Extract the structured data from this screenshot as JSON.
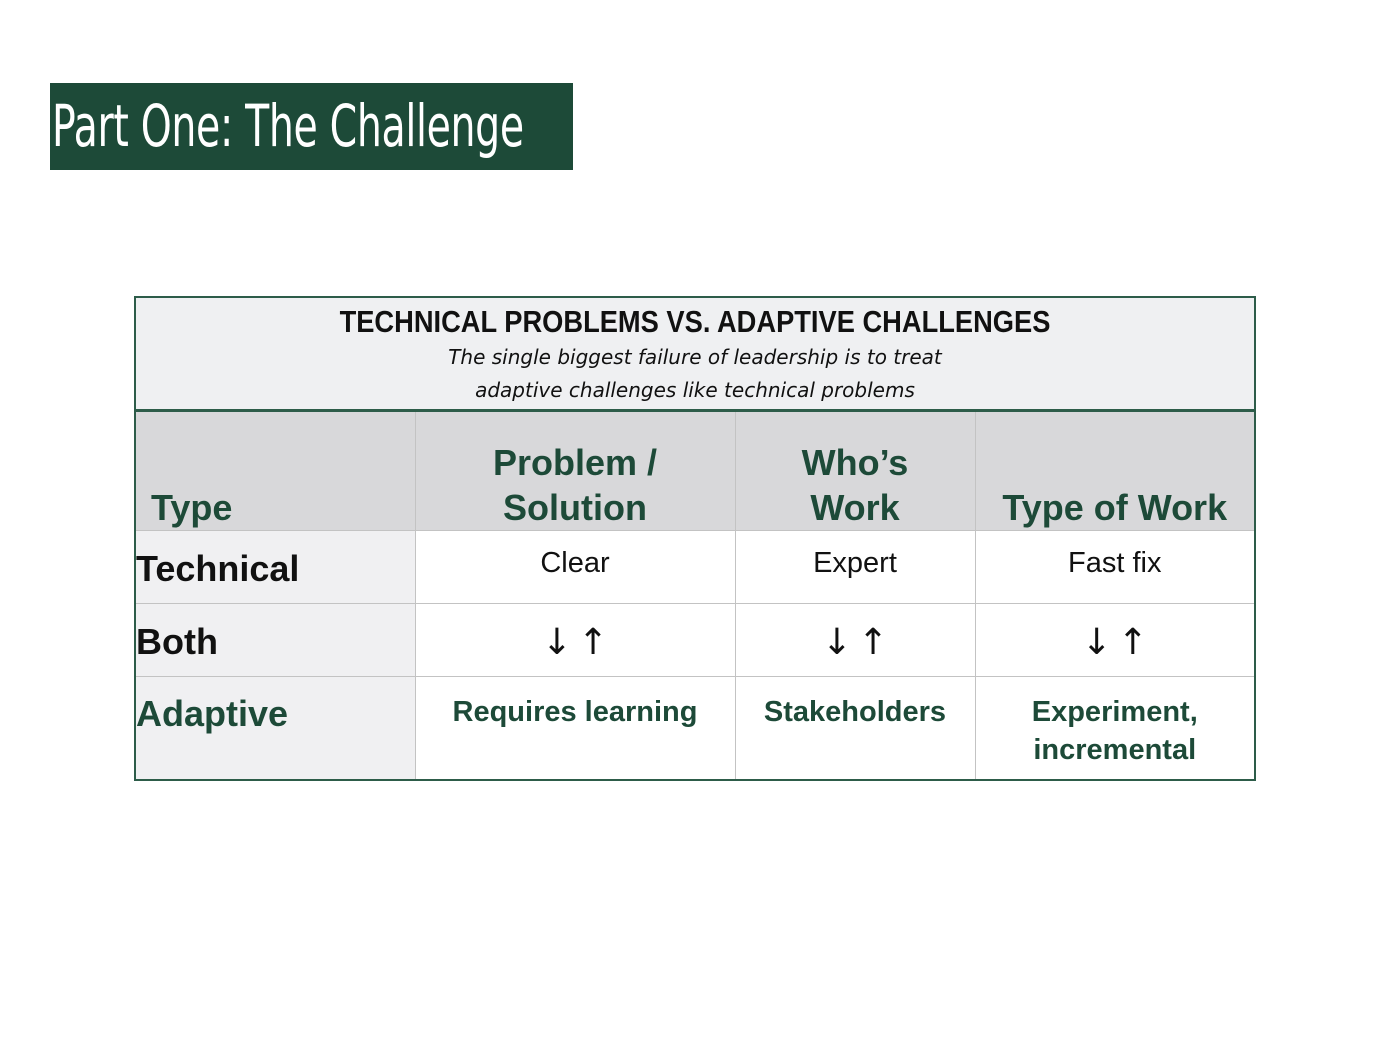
{
  "slide": {
    "title": "Part One:  The Challenge"
  },
  "table": {
    "heading": "TECHNICAL PROBLEMS VS. ADAPTIVE CHALLENGES",
    "subtitle_line1": "The single biggest failure of leadership is to treat",
    "subtitle_line2": "adaptive challenges like technical problems",
    "columns": {
      "type": "Type",
      "problem_solution_l1": "Problem /",
      "problem_solution_l2": "Solution",
      "whos_work_l1": "Who’s",
      "whos_work_l2": "Work",
      "type_of_work": "Type of Work"
    },
    "rows": [
      {
        "label": "Technical",
        "problem_solution": "Clear",
        "whos_work": "Expert",
        "type_of_work": "Fast fix"
      },
      {
        "label": "Both",
        "arrow_down": "↓",
        "arrow_up": "↑"
      },
      {
        "label": "Adaptive",
        "problem_solution": "Requires learning",
        "whos_work": "Stakeholders",
        "type_of_work_l1": "Experiment,",
        "type_of_work_l2": "incremental"
      }
    ]
  },
  "colors": {
    "brand_green": "#1d4a38",
    "frame_green": "#2d5c49",
    "header_gray": "#d8d8da",
    "caption_gray": "#eff0f2"
  }
}
